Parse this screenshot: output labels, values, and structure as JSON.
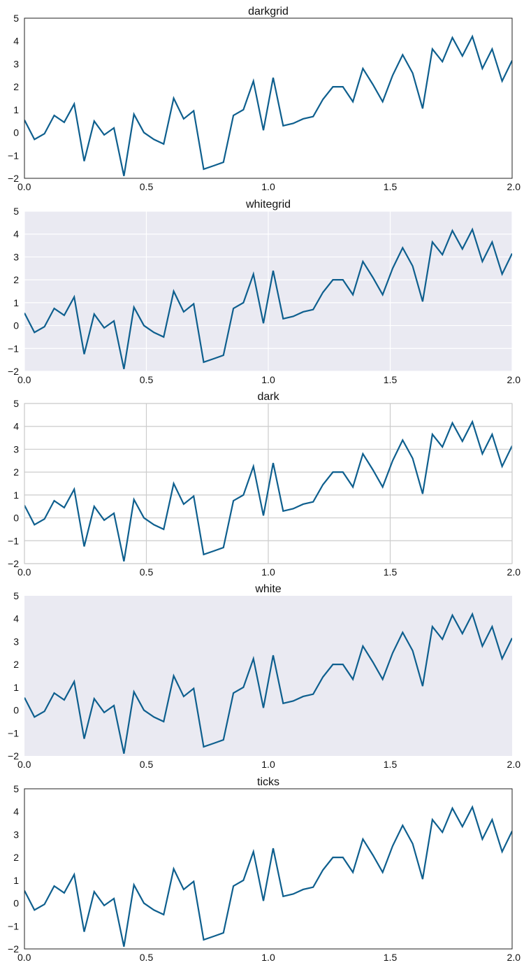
{
  "chart_data": [
    {
      "type": "line",
      "title": "darkgrid",
      "background": "#ffffff",
      "grid": false,
      "grid_color": "#cfcfcf",
      "frame": true,
      "frame_color": "#222222",
      "xlim": [
        0.0,
        2.0
      ],
      "ylim": [
        -2,
        5
      ],
      "xticks": [
        0.0,
        0.5,
        1.0,
        1.5,
        2.0
      ],
      "xtick_labels": [
        "0.0",
        "0.5",
        "1.0",
        "1.5",
        "2.0"
      ],
      "yticks": [
        -2,
        -1,
        0,
        1,
        2,
        3,
        4,
        5
      ],
      "ytick_labels": [
        "−2",
        "−1",
        "0",
        "1",
        "2",
        "3",
        "4",
        "5"
      ],
      "series": [
        {
          "color": "#0e5f8e",
          "x": [
            0.0,
            0.041,
            0.082,
            0.122,
            0.163,
            0.204,
            0.245,
            0.286,
            0.327,
            0.367,
            0.408,
            0.449,
            0.49,
            0.531,
            0.571,
            0.612,
            0.653,
            0.694,
            0.735,
            0.776,
            0.816,
            0.857,
            0.898,
            0.939,
            0.98,
            1.02,
            1.061,
            1.102,
            1.143,
            1.184,
            1.224,
            1.265,
            1.306,
            1.347,
            1.388,
            1.429,
            1.469,
            1.51,
            1.551,
            1.592,
            1.633,
            1.673,
            1.714,
            1.755,
            1.796,
            1.837,
            1.878,
            1.918,
            1.959,
            2.0
          ],
          "y": [
            0.55,
            -0.3,
            -0.05,
            0.75,
            0.45,
            1.25,
            -1.25,
            0.5,
            -0.1,
            0.2,
            -1.9,
            0.8,
            0.0,
            -0.3,
            -0.5,
            1.5,
            0.6,
            0.95,
            -1.6,
            -1.45,
            -1.3,
            0.75,
            1.0,
            2.25,
            0.1,
            2.4,
            0.3,
            0.4,
            0.6,
            0.7,
            1.45,
            2.0,
            2.0,
            1.35,
            2.8,
            2.1,
            1.35,
            2.5,
            3.4,
            2.6,
            1.05,
            3.65,
            3.1,
            4.15,
            3.35,
            4.2,
            2.8,
            3.65,
            2.25,
            3.15
          ]
        }
      ]
    },
    {
      "type": "line",
      "title": "whitegrid",
      "background": "#eaeaf2",
      "grid": true,
      "grid_color": "#ffffff",
      "frame": false,
      "frame_color": "#222222",
      "xlim": [
        0.0,
        2.0
      ],
      "ylim": [
        -2,
        5
      ],
      "xticks": [
        0.0,
        0.5,
        1.0,
        1.5,
        2.0
      ],
      "xtick_labels": [
        "0.0",
        "0.5",
        "1.0",
        "1.5",
        "2.0"
      ],
      "yticks": [
        -2,
        -1,
        0,
        1,
        2,
        3,
        4,
        5
      ],
      "ytick_labels": [
        "−2",
        "−1",
        "0",
        "1",
        "2",
        "3",
        "4",
        "5"
      ],
      "series": [
        {
          "color": "#0e5f8e",
          "x": [
            0.0,
            0.041,
            0.082,
            0.122,
            0.163,
            0.204,
            0.245,
            0.286,
            0.327,
            0.367,
            0.408,
            0.449,
            0.49,
            0.531,
            0.571,
            0.612,
            0.653,
            0.694,
            0.735,
            0.776,
            0.816,
            0.857,
            0.898,
            0.939,
            0.98,
            1.02,
            1.061,
            1.102,
            1.143,
            1.184,
            1.224,
            1.265,
            1.306,
            1.347,
            1.388,
            1.429,
            1.469,
            1.51,
            1.551,
            1.592,
            1.633,
            1.673,
            1.714,
            1.755,
            1.796,
            1.837,
            1.878,
            1.918,
            1.959,
            2.0
          ],
          "y": [
            0.55,
            -0.3,
            -0.05,
            0.75,
            0.45,
            1.25,
            -1.25,
            0.5,
            -0.1,
            0.2,
            -1.9,
            0.8,
            0.0,
            -0.3,
            -0.5,
            1.5,
            0.6,
            0.95,
            -1.6,
            -1.45,
            -1.3,
            0.75,
            1.0,
            2.25,
            0.1,
            2.4,
            0.3,
            0.4,
            0.6,
            0.7,
            1.45,
            2.0,
            2.0,
            1.35,
            2.8,
            2.1,
            1.35,
            2.5,
            3.4,
            2.6,
            1.05,
            3.65,
            3.1,
            4.15,
            3.35,
            4.2,
            2.8,
            3.65,
            2.25,
            3.15
          ]
        }
      ]
    },
    {
      "type": "line",
      "title": "dark",
      "background": "#ffffff",
      "grid": true,
      "grid_color": "#cccccc",
      "frame": true,
      "frame_color": "#c8c8c8",
      "xlim": [
        0.0,
        2.0
      ],
      "ylim": [
        -2,
        5
      ],
      "xticks": [
        0.0,
        0.5,
        1.0,
        1.5,
        2.0
      ],
      "xtick_labels": [
        "0.0",
        "0.5",
        "1.0",
        "1.5",
        "2.0"
      ],
      "yticks": [
        -2,
        -1,
        0,
        1,
        2,
        3,
        4,
        5
      ],
      "ytick_labels": [
        "−2",
        "−1",
        "0",
        "1",
        "2",
        "3",
        "4",
        "5"
      ],
      "series": [
        {
          "color": "#0e5f8e",
          "x": [
            0.0,
            0.041,
            0.082,
            0.122,
            0.163,
            0.204,
            0.245,
            0.286,
            0.327,
            0.367,
            0.408,
            0.449,
            0.49,
            0.531,
            0.571,
            0.612,
            0.653,
            0.694,
            0.735,
            0.776,
            0.816,
            0.857,
            0.898,
            0.939,
            0.98,
            1.02,
            1.061,
            1.102,
            1.143,
            1.184,
            1.224,
            1.265,
            1.306,
            1.347,
            1.388,
            1.429,
            1.469,
            1.51,
            1.551,
            1.592,
            1.633,
            1.673,
            1.714,
            1.755,
            1.796,
            1.837,
            1.878,
            1.918,
            1.959,
            2.0
          ],
          "y": [
            0.55,
            -0.3,
            -0.05,
            0.75,
            0.45,
            1.25,
            -1.25,
            0.5,
            -0.1,
            0.2,
            -1.9,
            0.8,
            0.0,
            -0.3,
            -0.5,
            1.5,
            0.6,
            0.95,
            -1.6,
            -1.45,
            -1.3,
            0.75,
            1.0,
            2.25,
            0.1,
            2.4,
            0.3,
            0.4,
            0.6,
            0.7,
            1.45,
            2.0,
            2.0,
            1.35,
            2.8,
            2.1,
            1.35,
            2.5,
            3.4,
            2.6,
            1.05,
            3.65,
            3.1,
            4.15,
            3.35,
            4.2,
            2.8,
            3.65,
            2.25,
            3.15
          ]
        }
      ]
    },
    {
      "type": "line",
      "title": "white",
      "background": "#eaeaf2",
      "grid": false,
      "grid_color": "#ffffff",
      "frame": false,
      "frame_color": "#222222",
      "xlim": [
        0.0,
        2.0
      ],
      "ylim": [
        -2,
        5
      ],
      "xticks": [
        0.0,
        0.5,
        1.0,
        1.5,
        2.0
      ],
      "xtick_labels": [
        "0.0",
        "0.5",
        "1.0",
        "1.5",
        "2.0"
      ],
      "yticks": [
        -2,
        -1,
        0,
        1,
        2,
        3,
        4,
        5
      ],
      "ytick_labels": [
        "−2",
        "−1",
        "0",
        "1",
        "2",
        "3",
        "4",
        "5"
      ],
      "series": [
        {
          "color": "#0e5f8e",
          "x": [
            0.0,
            0.041,
            0.082,
            0.122,
            0.163,
            0.204,
            0.245,
            0.286,
            0.327,
            0.367,
            0.408,
            0.449,
            0.49,
            0.531,
            0.571,
            0.612,
            0.653,
            0.694,
            0.735,
            0.776,
            0.816,
            0.857,
            0.898,
            0.939,
            0.98,
            1.02,
            1.061,
            1.102,
            1.143,
            1.184,
            1.224,
            1.265,
            1.306,
            1.347,
            1.388,
            1.429,
            1.469,
            1.51,
            1.551,
            1.592,
            1.633,
            1.673,
            1.714,
            1.755,
            1.796,
            1.837,
            1.878,
            1.918,
            1.959,
            2.0
          ],
          "y": [
            0.55,
            -0.3,
            -0.05,
            0.75,
            0.45,
            1.25,
            -1.25,
            0.5,
            -0.1,
            0.2,
            -1.9,
            0.8,
            0.0,
            -0.3,
            -0.5,
            1.5,
            0.6,
            0.95,
            -1.6,
            -1.45,
            -1.3,
            0.75,
            1.0,
            2.25,
            0.1,
            2.4,
            0.3,
            0.4,
            0.6,
            0.7,
            1.45,
            2.0,
            2.0,
            1.35,
            2.8,
            2.1,
            1.35,
            2.5,
            3.4,
            2.6,
            1.05,
            3.65,
            3.1,
            4.15,
            3.35,
            4.2,
            2.8,
            3.65,
            2.25,
            3.15
          ]
        }
      ]
    },
    {
      "type": "line",
      "title": "ticks",
      "background": "#ffffff",
      "grid": false,
      "grid_color": "#cfcfcf",
      "frame": true,
      "frame_color": "#222222",
      "xlim": [
        0.0,
        2.0
      ],
      "ylim": [
        -2,
        5
      ],
      "xticks": [
        0.0,
        0.5,
        1.0,
        1.5,
        2.0
      ],
      "xtick_labels": [
        "0.0",
        "0.5",
        "1.0",
        "1.5",
        "2.0"
      ],
      "yticks": [
        -2,
        -1,
        0,
        1,
        2,
        3,
        4,
        5
      ],
      "ytick_labels": [
        "−2",
        "−1",
        "0",
        "1",
        "2",
        "3",
        "4",
        "5"
      ],
      "series": [
        {
          "color": "#0e5f8e",
          "x": [
            0.0,
            0.041,
            0.082,
            0.122,
            0.163,
            0.204,
            0.245,
            0.286,
            0.327,
            0.367,
            0.408,
            0.449,
            0.49,
            0.531,
            0.571,
            0.612,
            0.653,
            0.694,
            0.735,
            0.776,
            0.816,
            0.857,
            0.898,
            0.939,
            0.98,
            1.02,
            1.061,
            1.102,
            1.143,
            1.184,
            1.224,
            1.265,
            1.306,
            1.347,
            1.388,
            1.429,
            1.469,
            1.51,
            1.551,
            1.592,
            1.633,
            1.673,
            1.714,
            1.755,
            1.796,
            1.837,
            1.878,
            1.918,
            1.959,
            2.0
          ],
          "y": [
            0.55,
            -0.3,
            -0.05,
            0.75,
            0.45,
            1.25,
            -1.25,
            0.5,
            -0.1,
            0.2,
            -1.9,
            0.8,
            0.0,
            -0.3,
            -0.5,
            1.5,
            0.6,
            0.95,
            -1.6,
            -1.45,
            -1.3,
            0.75,
            1.0,
            2.25,
            0.1,
            2.4,
            0.3,
            0.4,
            0.6,
            0.7,
            1.45,
            2.0,
            2.0,
            1.35,
            2.8,
            2.1,
            1.35,
            2.5,
            3.4,
            2.6,
            1.05,
            3.65,
            3.1,
            4.15,
            3.35,
            4.2,
            2.8,
            3.65,
            2.25,
            3.15
          ]
        }
      ]
    }
  ]
}
